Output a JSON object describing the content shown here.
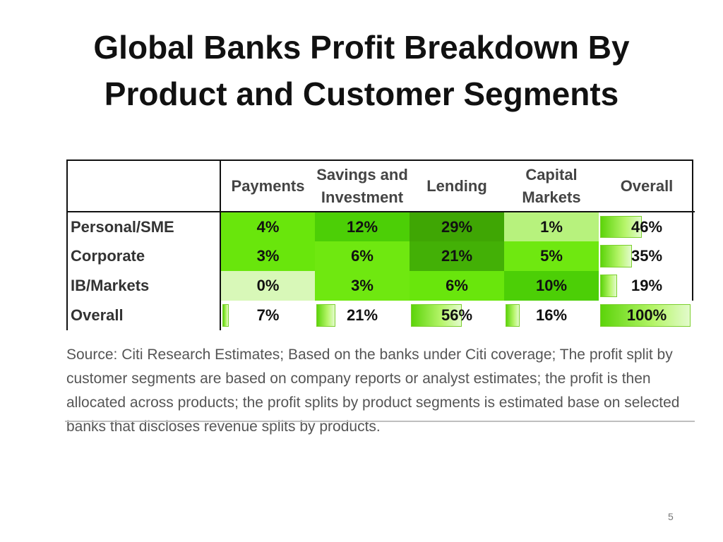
{
  "title": "Global Banks Profit Breakdown By Product and Customer Segments",
  "table": {
    "columns": [
      "Payments",
      "Savings and Investment",
      "Lending",
      "Capital Markets",
      "Overall"
    ],
    "rows": [
      {
        "label": "Personal/SME",
        "values": [
          "4%",
          "12%",
          "29%",
          "1%",
          "46%"
        ]
      },
      {
        "label": "Corporate",
        "values": [
          "3%",
          "6%",
          "21%",
          "5%",
          "35%"
        ]
      },
      {
        "label": "IB/Markets",
        "values": [
          "0%",
          "3%",
          "6%",
          "10%",
          "19%"
        ]
      },
      {
        "label": "Overall",
        "values": [
          "7%",
          "21%",
          "56%",
          "16%",
          "100%"
        ]
      }
    ],
    "heat_colors": [
      [
        "#69e60c",
        "#4ccf06",
        "#3fa604",
        "#b7f27d",
        null
      ],
      [
        "#69e60c",
        "#6fe810",
        "#43b006",
        "#6fe810",
        null
      ],
      [
        "#d8f8b8",
        "#6fe810",
        "#69e60c",
        "#4ccf06",
        null
      ]
    ],
    "overall_bar_fraction": [
      0.07,
      0.21,
      0.56,
      0.16,
      1.0
    ],
    "overall_column_bar_fraction": [
      0.46,
      0.35,
      0.19
    ]
  },
  "source_note": "Source: Citi Research Estimates; Based on the banks under Citi coverage; The profit split by customer segments are based on company reports or analyst estimates; the profit is then allocated across products; the profit splits by product segments is estimated base on selected banks that discloses revenue splits by products.",
  "page_number": "5"
}
